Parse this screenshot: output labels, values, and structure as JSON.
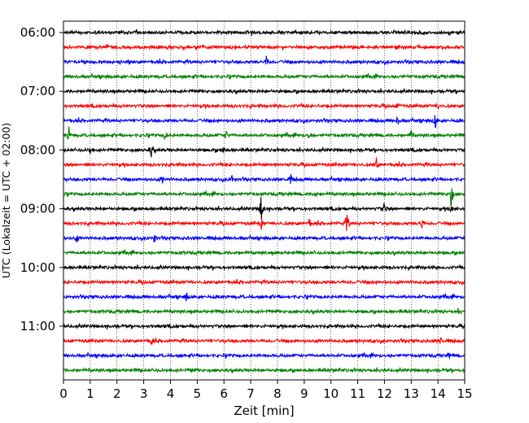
{
  "chart_data": {
    "type": "line",
    "description_title": "",
    "xlabel": "Zeit  [min]",
    "ylabel": "UTC (Lokalzeit = UTC + 02:00)",
    "xlim": [
      0,
      15
    ],
    "x_ticks": [
      "0",
      "1",
      "2",
      "3",
      "4",
      "5",
      "6",
      "7",
      "8",
      "9",
      "10",
      "11",
      "12",
      "13",
      "14",
      "15"
    ],
    "y_tick_labels": [
      "06:00",
      "07:00",
      "08:00",
      "09:00",
      "10:00",
      "11:00"
    ],
    "y_tick_rows": [
      0,
      4,
      8,
      12,
      16,
      20
    ],
    "grid": "vertical dotted",
    "trace_colors": [
      "#000000",
      "#ff0000",
      "#0000ff",
      "#008000"
    ],
    "trace_interval_minutes": 15,
    "start_time": "06:00",
    "rows": [
      {
        "time": "06:00",
        "color": "#000000",
        "events": [
          [
            8.1,
            5
          ]
        ]
      },
      {
        "time": "06:15",
        "color": "#ff0000",
        "events": []
      },
      {
        "time": "06:30",
        "color": "#0000ff",
        "events": [
          [
            7.6,
            10
          ]
        ]
      },
      {
        "time": "06:45",
        "color": "#008000",
        "events": []
      },
      {
        "time": "07:00",
        "color": "#000000",
        "events": []
      },
      {
        "time": "07:15",
        "color": "#ff0000",
        "events": [
          [
            12.5,
            4
          ],
          [
            14.0,
            5
          ]
        ]
      },
      {
        "time": "07:30",
        "color": "#0000ff",
        "events": [
          [
            12.5,
            6
          ],
          [
            13.9,
            13
          ]
        ]
      },
      {
        "time": "07:45",
        "color": "#008000",
        "events": [
          [
            0.2,
            10
          ],
          [
            3.8,
            6
          ],
          [
            6.1,
            9
          ],
          [
            9.2,
            10
          ],
          [
            13.0,
            8
          ]
        ]
      },
      {
        "time": "08:00",
        "color": "#000000",
        "events": [
          [
            1.0,
            6
          ],
          [
            3.3,
            12
          ],
          [
            6.0,
            8
          ]
        ]
      },
      {
        "time": "08:15",
        "color": "#ff0000",
        "events": [
          [
            11.7,
            8
          ]
        ]
      },
      {
        "time": "08:30",
        "color": "#0000ff",
        "events": [
          [
            3.7,
            5
          ],
          [
            6.3,
            5
          ],
          [
            8.5,
            6
          ]
        ]
      },
      {
        "time": "08:45",
        "color": "#008000",
        "events": [
          [
            9.4,
            5
          ],
          [
            14.5,
            25
          ]
        ]
      },
      {
        "time": "09:00",
        "color": "#000000",
        "events": [
          [
            7.4,
            30
          ],
          [
            12.0,
            12
          ],
          [
            14.5,
            7
          ]
        ]
      },
      {
        "time": "09:15",
        "color": "#ff0000",
        "events": [
          [
            7.4,
            12
          ],
          [
            9.2,
            7
          ],
          [
            10.6,
            20
          ],
          [
            13.4,
            10
          ]
        ]
      },
      {
        "time": "09:30",
        "color": "#0000ff",
        "events": [
          [
            0.5,
            8
          ],
          [
            3.4,
            6
          ]
        ]
      },
      {
        "time": "09:45",
        "color": "#008000",
        "events": []
      },
      {
        "time": "10:00",
        "color": "#000000",
        "events": []
      },
      {
        "time": "10:15",
        "color": "#ff0000",
        "events": []
      },
      {
        "time": "10:30",
        "color": "#0000ff",
        "events": [
          [
            4.6,
            7
          ]
        ]
      },
      {
        "time": "10:45",
        "color": "#008000",
        "events": [
          [
            14.8,
            4
          ]
        ]
      },
      {
        "time": "11:00",
        "color": "#000000",
        "events": []
      },
      {
        "time": "11:15",
        "color": "#ff0000",
        "events": [
          [
            3.3,
            6
          ],
          [
            14.1,
            5
          ]
        ]
      },
      {
        "time": "11:30",
        "color": "#0000ff",
        "events": [
          [
            14.4,
            4
          ]
        ]
      },
      {
        "time": "11:45",
        "color": "#008000",
        "events": [
          [
            4.8,
            3
          ]
        ]
      }
    ]
  }
}
